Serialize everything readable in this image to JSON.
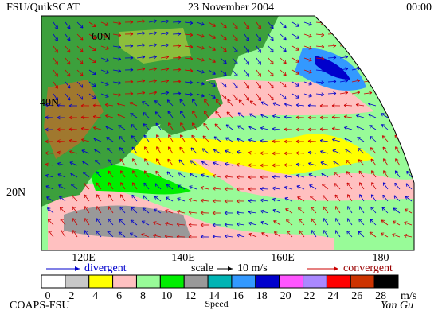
{
  "header": {
    "left": "FSU/QuikSCAT",
    "center": "23 November 2004",
    "right": "00:00"
  },
  "map": {
    "lat_labels": [
      "60N",
      "40N",
      "20N"
    ],
    "lon_labels": [
      "120E",
      "140E",
      "160E",
      "180"
    ]
  },
  "legend": {
    "divergent": "divergent",
    "scale": "scale",
    "scale_value": "10 m/s",
    "convergent": "convergent"
  },
  "colorbar": {
    "ticks": [
      0,
      2,
      4,
      6,
      8,
      10,
      12,
      14,
      16,
      18,
      20,
      22,
      24,
      26,
      28
    ],
    "colors": [
      "#ffffff",
      "#c8c8c8",
      "#ffff00",
      "#ffc0c0",
      "#98fb98",
      "#00ee00",
      "#999999",
      "#00b4b4",
      "#3399ff",
      "#0000cc",
      "#ff55ff",
      "#aa88ff",
      "#ff0000",
      "#cc3300",
      "#000000"
    ],
    "unit": "m/s",
    "title": "Speed"
  },
  "footer": {
    "left": "COAPS-FSU",
    "right": "Yan Gu"
  }
}
